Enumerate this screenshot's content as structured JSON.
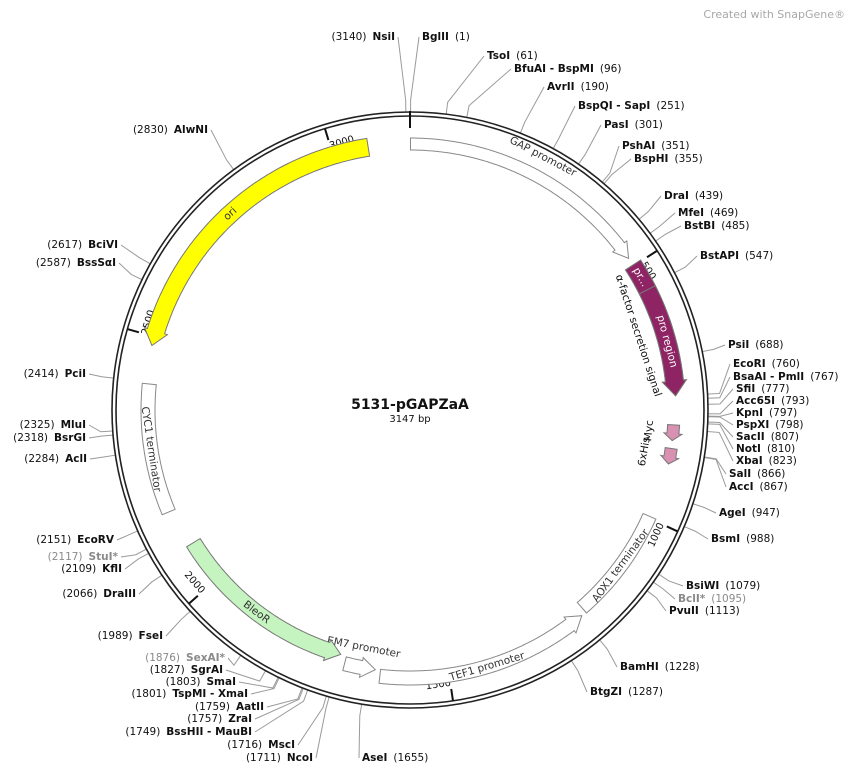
{
  "title": "5131-pGAPZaA",
  "length_label": "3147 bp",
  "length": 3147,
  "watermark": "Created with SnapGene®",
  "scale_ticks": [
    500,
    1000,
    1500,
    2000,
    2500,
    3000
  ],
  "features": [
    {
      "name": "GAP promoter",
      "start": 1,
      "end": 483,
      "direction": 1,
      "color": "#ffffff"
    },
    {
      "name": "α-factor secretion signal",
      "start": 498,
      "end": 760,
      "direction": 1,
      "color": "#8e2463"
    },
    {
      "name": "pr...",
      "start": 498,
      "end": 552,
      "direction": 0,
      "color": "#8e2463"
    },
    {
      "name": "pro region",
      "start": 552,
      "end": 760,
      "direction": 1,
      "color": "#8e2463"
    },
    {
      "name": "Myc",
      "start": 815,
      "end": 845,
      "direction": 1,
      "color": "#d891b0"
    },
    {
      "name": "6xHis",
      "start": 860,
      "end": 890,
      "direction": 1,
      "color": "#d891b0"
    },
    {
      "name": "AOX1 terminator",
      "start": 996,
      "end": 1215,
      "direction": 0,
      "color": "#ffffff"
    },
    {
      "name": "TEF1 promoter",
      "start": 1225,
      "end": 1630,
      "direction": -1,
      "color": "#ffffff"
    },
    {
      "name": "EM7 promoter",
      "start": 1640,
      "end": 1700,
      "direction": -1,
      "color": "#ffffff"
    },
    {
      "name": "BleoR",
      "start": 1712,
      "end": 2085,
      "direction": -1,
      "color": "#c6f4c0"
    },
    {
      "name": "CYC1 terminator",
      "start": 2160,
      "end": 2410,
      "direction": 0,
      "color": "#ffffff"
    },
    {
      "name": "ori",
      "start": 2483,
      "end": 3068,
      "direction": -1,
      "color": "#ffff00"
    }
  ],
  "sites": [
    {
      "name": "NsiI",
      "pos": 3140,
      "pos_label": "(3140)"
    },
    {
      "name": "BglII",
      "pos": 1,
      "pos_label": "(1)"
    },
    {
      "name": "TsoI",
      "pos": 61,
      "pos_label": "(61)"
    },
    {
      "name": "BfuAI - BspMI",
      "pos": 96,
      "pos_label": "(96)"
    },
    {
      "name": "AvrII",
      "pos": 190,
      "pos_label": "(190)"
    },
    {
      "name": "BspQI - SapI",
      "pos": 251,
      "pos_label": "(251)"
    },
    {
      "name": "PasI",
      "pos": 301,
      "pos_label": "(301)"
    },
    {
      "name": "PshAI",
      "pos": 351,
      "pos_label": "(351)"
    },
    {
      "name": "BspHI",
      "pos": 355,
      "pos_label": "(355)"
    },
    {
      "name": "DraI",
      "pos": 439,
      "pos_label": "(439)"
    },
    {
      "name": "MfeI",
      "pos": 469,
      "pos_label": "(469)"
    },
    {
      "name": "BstBI",
      "pos": 485,
      "pos_label": "(485)"
    },
    {
      "name": "BstAPI",
      "pos": 547,
      "pos_label": "(547)"
    },
    {
      "name": "PsiI",
      "pos": 688,
      "pos_label": "(688)"
    },
    {
      "name": "EcoRI",
      "pos": 760,
      "pos_label": "(760)"
    },
    {
      "name": "BsaAI - PmlI",
      "pos": 767,
      "pos_label": "(767)"
    },
    {
      "name": "SfiI",
      "pos": 777,
      "pos_label": "(777)"
    },
    {
      "name": "Acc65I",
      "pos": 793,
      "pos_label": "(793)"
    },
    {
      "name": "KpnI",
      "pos": 797,
      "pos_label": "(797)"
    },
    {
      "name": "PspXI",
      "pos": 798,
      "pos_label": "(798)"
    },
    {
      "name": "SacII",
      "pos": 807,
      "pos_label": "(807)"
    },
    {
      "name": "NotI",
      "pos": 810,
      "pos_label": "(810)"
    },
    {
      "name": "XbaI",
      "pos": 823,
      "pos_label": "(823)"
    },
    {
      "name": "SalI",
      "pos": 866,
      "pos_label": "(866)"
    },
    {
      "name": "AccI",
      "pos": 867,
      "pos_label": "(867)"
    },
    {
      "name": "AgeI",
      "pos": 947,
      "pos_label": "(947)"
    },
    {
      "name": "BsmI",
      "pos": 988,
      "pos_label": "(988)"
    },
    {
      "name": "BsiWI",
      "pos": 1079,
      "pos_label": "(1079)"
    },
    {
      "name": "BclI*",
      "pos": 1095,
      "pos_label": "(1095)",
      "color": "#8a8a8a"
    },
    {
      "name": "PvuII",
      "pos": 1113,
      "pos_label": "(1113)"
    },
    {
      "name": "BamHI",
      "pos": 1228,
      "pos_label": "(1228)"
    },
    {
      "name": "BtgZI",
      "pos": 1287,
      "pos_label": "(1287)"
    },
    {
      "name": "AseI",
      "pos": 1655,
      "pos_label": "(1655)"
    },
    {
      "name": "NcoI",
      "pos": 1711,
      "pos_label": "(1711)"
    },
    {
      "name": "MscI",
      "pos": 1716,
      "pos_label": "(1716)"
    },
    {
      "name": "BssHII - MauBI",
      "pos": 1749,
      "pos_label": "(1749)"
    },
    {
      "name": "ZraI",
      "pos": 1757,
      "pos_label": "(1757)"
    },
    {
      "name": "AatII",
      "pos": 1759,
      "pos_label": "(1759)"
    },
    {
      "name": "TspMI - XmaI",
      "pos": 1801,
      "pos_label": "(1801)"
    },
    {
      "name": "SmaI",
      "pos": 1803,
      "pos_label": "(1803)"
    },
    {
      "name": "SgrAI",
      "pos": 1827,
      "pos_label": "(1827)"
    },
    {
      "name": "SexAI*",
      "pos": 1876,
      "pos_label": "(1876)",
      "color": "#8a8a8a"
    },
    {
      "name": "FseI",
      "pos": 1989,
      "pos_label": "(1989)"
    },
    {
      "name": "DraIII",
      "pos": 2066,
      "pos_label": "(2066)"
    },
    {
      "name": "KflI",
      "pos": 2109,
      "pos_label": "(2109)"
    },
    {
      "name": "StuI*",
      "pos": 2117,
      "pos_label": "(2117)",
      "color": "#8a8a8a"
    },
    {
      "name": "EcoRV",
      "pos": 2151,
      "pos_label": "(2151)"
    },
    {
      "name": "AclI",
      "pos": 2284,
      "pos_label": "(2284)"
    },
    {
      "name": "BsrGI",
      "pos": 2318,
      "pos_label": "(2318)"
    },
    {
      "name": "MluI",
      "pos": 2325,
      "pos_label": "(2325)"
    },
    {
      "name": "PciI",
      "pos": 2414,
      "pos_label": "(2414)"
    },
    {
      "name": "BssSαI",
      "pos": 2587,
      "pos_label": "(2587)"
    },
    {
      "name": "BciVI",
      "pos": 2617,
      "pos_label": "(2617)"
    },
    {
      "name": "AlwNI",
      "pos": 2830,
      "pos_label": "(2830)"
    }
  ]
}
